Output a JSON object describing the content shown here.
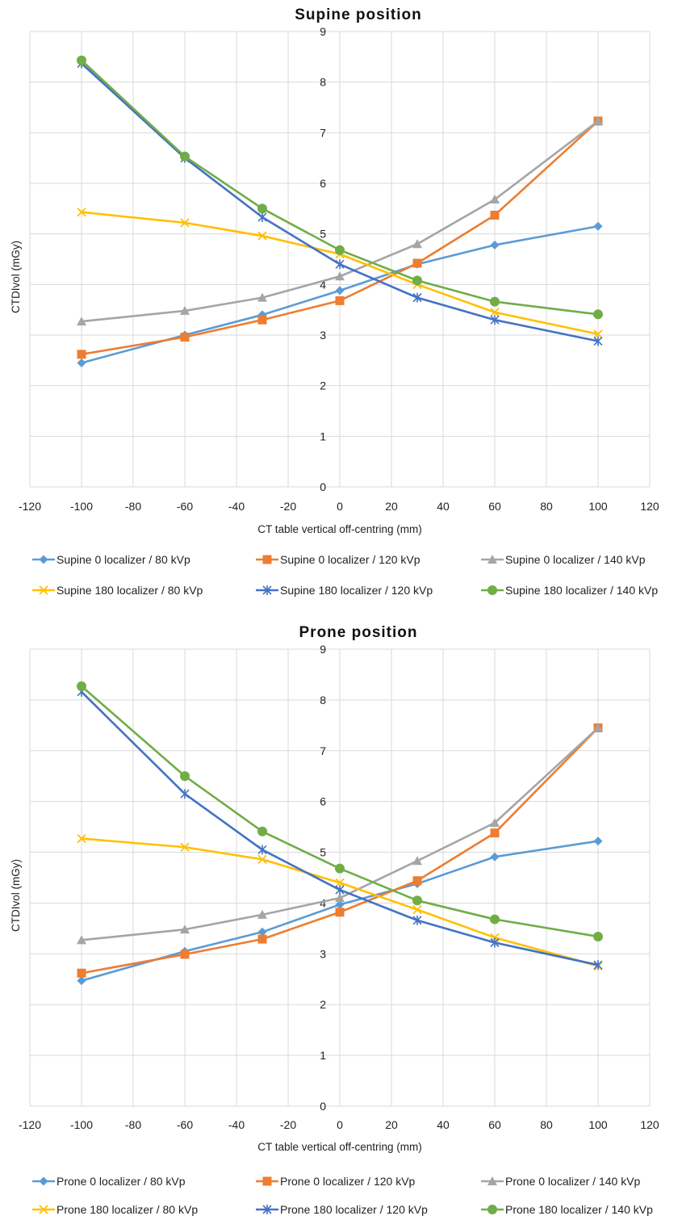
{
  "chart_data": [
    {
      "type": "line",
      "title": "Supine position",
      "xlabel": "CT table vertical off-centring (mm)",
      "ylabel": "CTDIvol (mGy)",
      "xlim": [
        -120,
        120
      ],
      "ylim": [
        0,
        9
      ],
      "xticks": [
        -120,
        -100,
        -80,
        -60,
        -40,
        -20,
        0,
        20,
        40,
        60,
        80,
        100,
        120
      ],
      "yticks": [
        0,
        1,
        2,
        3,
        4,
        5,
        6,
        7,
        8,
        9
      ],
      "grid": true,
      "legend_position": "bottom",
      "x": [
        -100,
        -60,
        -30,
        0,
        30,
        60,
        100
      ],
      "series": [
        {
          "name": "Supine 0 localizer / 80 kVp",
          "color": "#5B9BD5",
          "marker": "diamond",
          "values": [
            2.45,
            3.0,
            3.4,
            3.88,
            4.4,
            4.78,
            5.15
          ]
        },
        {
          "name": "Supine 0 localizer / 120 kVp",
          "color": "#ED7D31",
          "marker": "square",
          "values": [
            2.62,
            2.96,
            3.3,
            3.68,
            4.42,
            5.37,
            7.23
          ]
        },
        {
          "name": "Supine 0 localizer / 140 kVp",
          "color": "#A5A5A5",
          "marker": "triangle",
          "values": [
            3.27,
            3.48,
            3.74,
            4.16,
            4.8,
            5.68,
            7.23
          ]
        },
        {
          "name": "Supine 180 localizer / 80 kVp",
          "color": "#FFC000",
          "marker": "x",
          "values": [
            5.43,
            5.22,
            4.96,
            4.6,
            4.0,
            3.45,
            3.02
          ]
        },
        {
          "name": "Supine 180 localizer / 120 kVp",
          "color": "#4472C4",
          "marker": "star",
          "values": [
            8.37,
            6.5,
            5.33,
            4.4,
            3.74,
            3.3,
            2.88
          ]
        },
        {
          "name": "Supine 180 localizer / 140 kVp",
          "color": "#70AD47",
          "marker": "circle",
          "values": [
            8.43,
            6.53,
            5.5,
            4.68,
            4.08,
            3.66,
            3.41
          ]
        }
      ]
    },
    {
      "type": "line",
      "title": "Prone position",
      "xlabel": "CT table vertical off-centring (mm)",
      "ylabel": "CTDIvol (mGy)",
      "xlim": [
        -120,
        120
      ],
      "ylim": [
        0,
        9
      ],
      "xticks": [
        -120,
        -100,
        -80,
        -60,
        -40,
        -20,
        0,
        20,
        40,
        60,
        80,
        100,
        120
      ],
      "yticks": [
        0,
        1,
        2,
        3,
        4,
        5,
        6,
        7,
        8,
        9
      ],
      "grid": true,
      "legend_position": "bottom",
      "x": [
        -100,
        -60,
        -30,
        0,
        30,
        60,
        100
      ],
      "series": [
        {
          "name": "Prone 0 localizer / 80 kVp",
          "color": "#5B9BD5",
          "marker": "diamond",
          "values": [
            2.47,
            3.05,
            3.43,
            3.97,
            4.38,
            4.91,
            5.22
          ]
        },
        {
          "name": "Prone 0 localizer / 120 kVp",
          "color": "#ED7D31",
          "marker": "square",
          "values": [
            2.62,
            2.99,
            3.29,
            3.82,
            4.44,
            5.38,
            7.45
          ]
        },
        {
          "name": "Prone 0 localizer / 140 kVp",
          "color": "#A5A5A5",
          "marker": "triangle",
          "values": [
            3.27,
            3.48,
            3.77,
            4.1,
            4.83,
            5.58,
            7.45
          ]
        },
        {
          "name": "Prone 180 localizer / 80 kVp",
          "color": "#FFC000",
          "marker": "x",
          "values": [
            5.27,
            5.1,
            4.86,
            4.4,
            3.87,
            3.32,
            2.76
          ]
        },
        {
          "name": "Prone 180 localizer / 120 kVp",
          "color": "#4472C4",
          "marker": "star",
          "values": [
            8.16,
            6.15,
            5.05,
            4.26,
            3.66,
            3.22,
            2.78
          ]
        },
        {
          "name": "Prone 180 localizer / 140 kVp",
          "color": "#70AD47",
          "marker": "circle",
          "values": [
            8.27,
            6.5,
            5.41,
            4.68,
            4.05,
            3.68,
            3.34
          ]
        }
      ]
    }
  ]
}
